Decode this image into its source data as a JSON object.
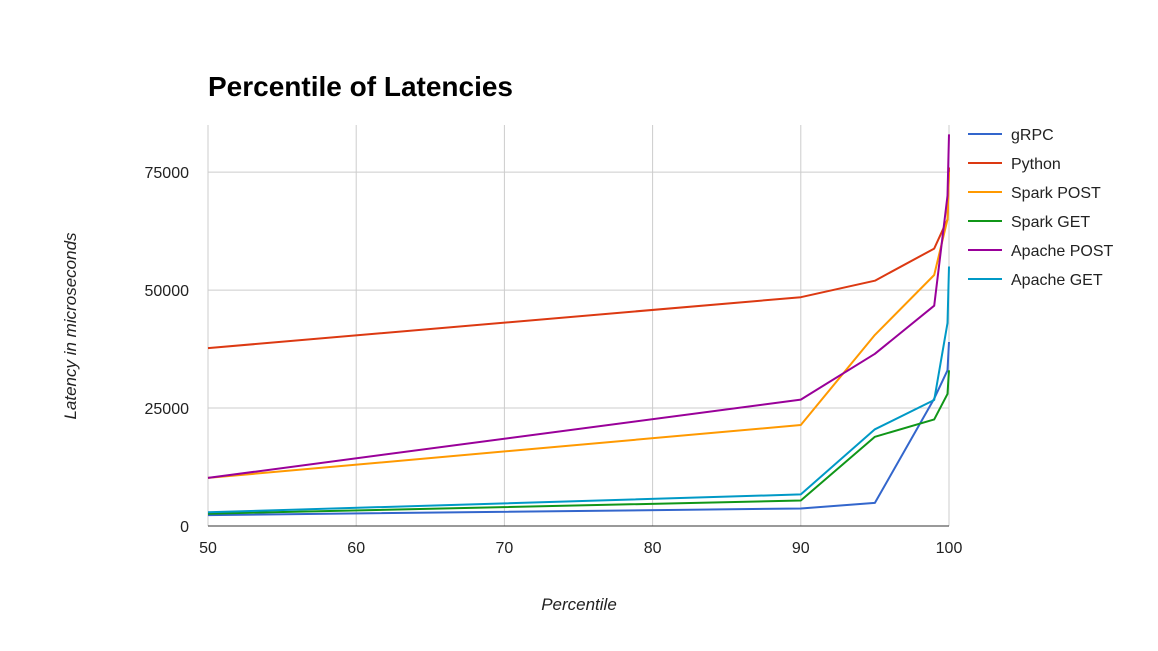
{
  "chart_data": {
    "type": "line",
    "title": "Percentile of Latencies",
    "xlabel": "Percentile",
    "ylabel": "Latency in microseconds",
    "xlim": [
      50,
      100
    ],
    "ylim": [
      0,
      85000
    ],
    "x_ticks": [
      "50",
      "60",
      "70",
      "80",
      "90",
      "100"
    ],
    "y_ticks": [
      "0",
      "25000",
      "50000",
      "75000"
    ],
    "grid": true,
    "legend_position": "right",
    "series": [
      {
        "name": "gRPC",
        "color": "#3366cc",
        "x": [
          50,
          90,
          95,
          99,
          99.9,
          100
        ],
        "y": [
          2300,
          3700,
          4900,
          27000,
          33000,
          39000
        ]
      },
      {
        "name": "Python",
        "color": "#dc3912",
        "x": [
          50,
          90,
          95,
          99,
          99.9,
          100
        ],
        "y": [
          37700,
          48500,
          52000,
          58800,
          65000,
          76000
        ]
      },
      {
        "name": "Spark POST",
        "color": "#ff9900",
        "x": [
          50,
          90,
          95,
          99,
          99.9,
          100
        ],
        "y": [
          10200,
          21400,
          40500,
          53200,
          65000,
          75000
        ]
      },
      {
        "name": "Spark GET",
        "color": "#109618",
        "x": [
          50,
          90,
          95,
          99,
          99.9,
          100
        ],
        "y": [
          2600,
          5400,
          18900,
          22600,
          28000,
          33000
        ]
      },
      {
        "name": "Apache POST",
        "color": "#990099",
        "x": [
          50,
          90,
          95,
          99,
          99.9,
          100
        ],
        "y": [
          10200,
          26800,
          36500,
          46700,
          70000,
          83000
        ]
      },
      {
        "name": "Apache GET",
        "color": "#0099c6",
        "x": [
          50,
          90,
          95,
          99,
          99.9,
          100
        ],
        "y": [
          2900,
          6700,
          20500,
          26700,
          43000,
          55000
        ]
      }
    ]
  }
}
